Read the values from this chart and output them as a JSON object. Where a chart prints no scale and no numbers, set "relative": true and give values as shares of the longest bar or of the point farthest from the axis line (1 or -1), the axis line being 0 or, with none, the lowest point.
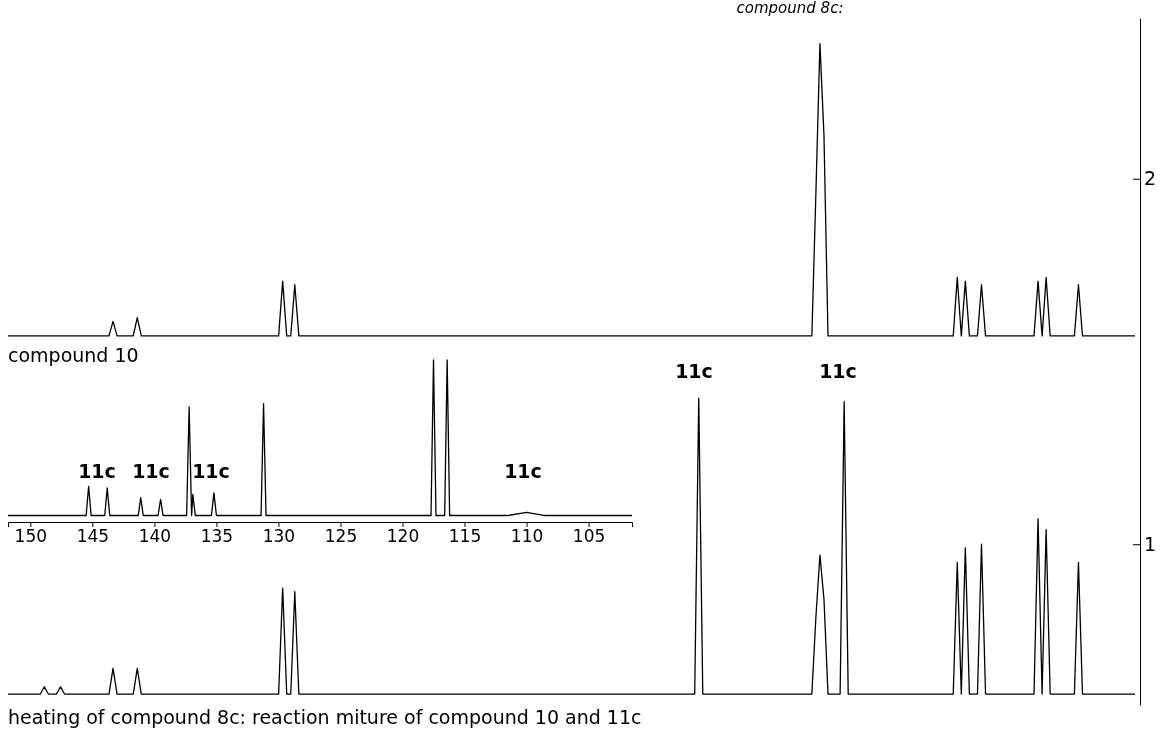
{
  "chart_data": [
    {
      "type": "line",
      "title": "compound 8c:",
      "relative": false,
      "tick_labels": "y",
      "grid": false,
      "marker": "none",
      "line_style": "solid",
      "categories": [
        null,
        null,
        null,
        null,
        null,
        null,
        null,
        null,
        null,
        null,
        null,
        null,
        null,
        null,
        null,
        null,
        null,
        null,
        null,
        null,
        null,
        null,
        null,
        null,
        null,
        null,
        null,
        null,
        null,
        null,
        null,
        null,
        null,
        null,
        null,
        null,
        null,
        null,
        null,
        null,
        null,
        null,
        null,
        null,
        null,
        null,
        null,
        null,
        null,
        null,
        null,
        null,
        null,
        null,
        null,
        null,
        null,
        null,
        null,
        null,
        null,
        null,
        null,
        null,
        null,
        null,
        null,
        null,
        null,
        null,
        null,
        null,
        null,
        null,
        null,
        null,
        null,
        null,
        null,
        null,
        null,
        null,
        null,
        null,
        null,
        null,
        null,
        null,
        null,
        null,
        null,
        null,
        null,
        null,
        null,
        null,
        null,
        null,
        null,
        null,
        null,
        null,
        null,
        null,
        null,
        null,
        null,
        null,
        null,
        null,
        null,
        null,
        null,
        null,
        null,
        null,
        null,
        null,
        null,
        null,
        null,
        null,
        null,
        null,
        null,
        null,
        null,
        null,
        null,
        null,
        null,
        null,
        null,
        null,
        null,
        null,
        null,
        null,
        null,
        null,
        null,
        null,
        null,
        null,
        null,
        null,
        null,
        null,
        null,
        null,
        null,
        null,
        null,
        null,
        null,
        null,
        null,
        null,
        null,
        null,
        null,
        null,
        null,
        null,
        null,
        null,
        null,
        null,
        null,
        null,
        null,
        null,
        null,
        null,
        null,
        null,
        null,
        null,
        null,
        null,
        null,
        null,
        null,
        null,
        null,
        null,
        null,
        null,
        null,
        null,
        null,
        null,
        null,
        null,
        null,
        null,
        null,
        null,
        null,
        null,
        null,
        null,
        null,
        null,
        null,
        null,
        null,
        null,
        null,
        null,
        null,
        null,
        null,
        null,
        null,
        null,
        null,
        null,
        null,
        null,
        null,
        null,
        null,
        null,
        null,
        null,
        null,
        null,
        null,
        null,
        null,
        null,
        null,
        null,
        null,
        null,
        null,
        null,
        null,
        null,
        null,
        null,
        null,
        null,
        null,
        null,
        null,
        null,
        null,
        null,
        null,
        null,
        null,
        null,
        null,
        null,
        null,
        null,
        null,
        null,
        null,
        null,
        null,
        null,
        null,
        null,
        null,
        null,
        null,
        null,
        null,
        null,
        null,
        null,
        null,
        null,
        null,
        null,
        null,
        null
      ],
      "ylim": [
        0.56,
        2.44
      ],
      "yticks": [
        1,
        2
      ],
      "series": [
        {
          "color": "#000000",
          "values": [
            1.57,
            1.57,
            1.57,
            1.57,
            1.57,
            1.57,
            1.57,
            1.57,
            1.57,
            1.57,
            1.57,
            1.57,
            1.57,
            1.57,
            1.57,
            1.57,
            1.57,
            1.57,
            1.57,
            1.57,
            1.57,
            1.57,
            1.57,
            1.57,
            1.57,
            1.57,
            1.61,
            1.57,
            1.57,
            1.57,
            1.57,
            1.57,
            1.62,
            1.57,
            1.57,
            1.57,
            1.57,
            1.57,
            1.57,
            1.57,
            1.57,
            1.57,
            1.57,
            1.57,
            1.57,
            1.57,
            1.57,
            1.57,
            1.57,
            1.57,
            1.57,
            1.57,
            1.57,
            1.57,
            1.57,
            1.57,
            1.57,
            1.57,
            1.57,
            1.57,
            1.57,
            1.57,
            1.57,
            1.57,
            1.57,
            1.57,
            1.57,
            1.57,
            1.72,
            1.57,
            1.57,
            1.71,
            1.57,
            1.57,
            1.57,
            1.57,
            1.57,
            1.57,
            1.57,
            1.57,
            1.57,
            1.57,
            1.57,
            1.57,
            1.57,
            1.57,
            1.57,
            1.57,
            1.57,
            1.57,
            1.57,
            1.57,
            1.57,
            1.57,
            1.57,
            1.57,
            1.57,
            1.57,
            1.57,
            1.57,
            1.57,
            1.57,
            1.57,
            1.57,
            1.57,
            1.57,
            1.57,
            1.57,
            1.57,
            1.57,
            1.57,
            1.57,
            1.57,
            1.57,
            1.57,
            1.57,
            1.57,
            1.57,
            1.57,
            1.57,
            1.57,
            1.57,
            1.57,
            1.57,
            1.57,
            1.57,
            1.57,
            1.57,
            1.57,
            1.57,
            1.57,
            1.57,
            1.57,
            1.57,
            1.57,
            1.57,
            1.57,
            1.57,
            1.57,
            1.57,
            1.57,
            1.57,
            1.57,
            1.57,
            1.57,
            1.57,
            1.57,
            1.57,
            1.57,
            1.57,
            1.57,
            1.57,
            1.57,
            1.57,
            1.57,
            1.57,
            1.57,
            1.57,
            1.57,
            1.57,
            1.57,
            1.57,
            1.57,
            1.57,
            1.57,
            1.57,
            1.57,
            1.57,
            1.57,
            1.57,
            1.57,
            1.57,
            1.57,
            1.57,
            1.57,
            1.57,
            1.57,
            1.57,
            1.57,
            1.57,
            1.57,
            1.57,
            1.57,
            1.57,
            1.57,
            1.57,
            1.57,
            1.57,
            1.57,
            1.57,
            1.57,
            1.57,
            1.57,
            1.57,
            1.57,
            1.57,
            1.57,
            1.57,
            1.57,
            1.57,
            1.96,
            2.37,
            2.12,
            1.57,
            1.57,
            1.57,
            1.57,
            1.57,
            1.57,
            1.57,
            1.57,
            1.57,
            1.57,
            1.57,
            1.57,
            1.57,
            1.57,
            1.57,
            1.57,
            1.57,
            1.57,
            1.57,
            1.57,
            1.57,
            1.57,
            1.57,
            1.57,
            1.57,
            1.57,
            1.57,
            1.57,
            1.57,
            1.57,
            1.57,
            1.57,
            1.73,
            1.57,
            1.72,
            1.57,
            1.57,
            1.57,
            1.71,
            1.57,
            1.57,
            1.57,
            1.57,
            1.57,
            1.57,
            1.57,
            1.57,
            1.57,
            1.57,
            1.57,
            1.57,
            1.57,
            1.72,
            1.57,
            1.73,
            1.57,
            1.57,
            1.57,
            1.57,
            1.57,
            1.57,
            1.57,
            1.71,
            1.57,
            1.57,
            1.57,
            1.57,
            1.57,
            1.57,
            1.57,
            1.57,
            1.57,
            1.57,
            1.57,
            1.57,
            1.57,
            1.57
          ]
        },
        {
          "color": "#000000",
          "values": [
            0.59,
            0.59,
            0.59,
            0.59,
            0.59,
            0.59,
            0.59,
            0.59,
            0.59,
            0.61,
            0.59,
            0.59,
            0.59,
            0.61,
            0.59,
            0.59,
            0.59,
            0.59,
            0.59,
            0.59,
            0.59,
            0.59,
            0.59,
            0.59,
            0.59,
            0.59,
            0.66,
            0.59,
            0.59,
            0.59,
            0.59,
            0.59,
            0.66,
            0.59,
            0.59,
            0.59,
            0.59,
            0.59,
            0.59,
            0.59,
            0.59,
            0.59,
            0.59,
            0.59,
            0.59,
            0.59,
            0.59,
            0.59,
            0.59,
            0.59,
            0.59,
            0.59,
            0.59,
            0.59,
            0.59,
            0.59,
            0.59,
            0.59,
            0.59,
            0.59,
            0.59,
            0.59,
            0.59,
            0.59,
            0.59,
            0.59,
            0.59,
            0.59,
            0.88,
            0.59,
            0.59,
            0.87,
            0.59,
            0.59,
            0.59,
            0.59,
            0.59,
            0.59,
            0.59,
            0.59,
            0.59,
            0.59,
            0.59,
            0.59,
            0.59,
            0.59,
            0.59,
            0.59,
            0.59,
            0.59,
            0.59,
            0.59,
            0.59,
            0.59,
            0.59,
            0.59,
            0.59,
            0.59,
            0.59,
            0.59,
            0.59,
            0.59,
            0.59,
            0.59,
            0.59,
            0.59,
            0.59,
            0.59,
            0.59,
            0.59,
            0.59,
            0.59,
            0.59,
            0.59,
            0.59,
            0.59,
            0.59,
            0.59,
            0.59,
            0.59,
            0.59,
            0.59,
            0.59,
            0.59,
            0.59,
            0.59,
            0.59,
            0.59,
            0.59,
            0.59,
            0.59,
            0.59,
            0.59,
            0.59,
            0.59,
            0.59,
            0.59,
            0.59,
            0.59,
            0.59,
            0.59,
            0.59,
            0.59,
            0.59,
            0.59,
            0.59,
            0.59,
            0.59,
            0.59,
            0.59,
            0.59,
            0.59,
            0.59,
            0.59,
            0.59,
            0.59,
            0.59,
            0.59,
            0.59,
            0.59,
            0.59,
            0.59,
            0.59,
            0.59,
            0.59,
            0.59,
            0.59,
            0.59,
            0.59,
            0.59,
            0.59,
            1.4,
            0.59,
            0.59,
            0.59,
            0.59,
            0.59,
            0.59,
            0.59,
            0.59,
            0.59,
            0.59,
            0.59,
            0.59,
            0.59,
            0.59,
            0.59,
            0.59,
            0.59,
            0.59,
            0.59,
            0.59,
            0.59,
            0.59,
            0.59,
            0.59,
            0.59,
            0.59,
            0.59,
            0.59,
            0.8,
            0.97,
            0.85,
            0.59,
            0.59,
            0.59,
            0.59,
            1.39,
            0.59,
            0.59,
            0.59,
            0.59,
            0.59,
            0.59,
            0.59,
            0.59,
            0.59,
            0.59,
            0.59,
            0.59,
            0.59,
            0.59,
            0.59,
            0.59,
            0.59,
            0.59,
            0.59,
            0.59,
            0.59,
            0.59,
            0.59,
            0.59,
            0.59,
            0.59,
            0.59,
            0.95,
            0.59,
            0.99,
            0.59,
            0.59,
            0.59,
            1.0,
            0.59,
            0.59,
            0.59,
            0.59,
            0.59,
            0.59,
            0.59,
            0.59,
            0.59,
            0.59,
            0.59,
            0.59,
            0.59,
            1.07,
            0.59,
            1.04,
            0.59,
            0.59,
            0.59,
            0.59,
            0.59,
            0.59,
            0.59,
            0.95,
            0.59,
            0.59,
            0.59,
            0.59,
            0.59,
            0.59,
            0.59,
            0.59,
            0.59,
            0.59,
            0.59,
            0.59,
            0.59,
            0.59
          ]
        }
      ],
      "annotations": [
        "compound 10",
        "heating of compound 8c:  reaction miture of compound 10 and 11c",
        "11c",
        "11c"
      ]
    },
    {
      "type": "line",
      "relative": true,
      "tick_labels": "x",
      "grid": false,
      "marker": "none",
      "line_style": "solid",
      "xlim": [
        151.8,
        101.5
      ],
      "xticks": [
        150,
        145,
        140,
        135,
        130,
        125,
        120,
        115,
        110,
        105
      ],
      "series": [
        {
          "color": "#000000",
          "x": [
            151.8,
            145.5,
            145.3,
            145.1,
            144.0,
            143.8,
            143.6,
            141.3,
            141.1,
            140.9,
            139.7,
            139.5,
            139.3,
            137.4,
            137.2,
            137.0,
            136.9,
            136.7,
            135.4,
            135.2,
            135.0,
            131.4,
            131.2,
            131.0,
            117.7,
            117.5,
            117.3,
            116.6,
            116.4,
            116.2,
            111.5,
            110.0,
            108.5,
            101.5
          ],
          "values": [
            0.04,
            0.04,
            0.22,
            0.04,
            0.04,
            0.21,
            0.04,
            0.04,
            0.15,
            0.04,
            0.04,
            0.14,
            0.04,
            0.04,
            0.71,
            0.04,
            0.17,
            0.04,
            0.04,
            0.18,
            0.04,
            0.04,
            0.73,
            0.04,
            0.04,
            1,
            0.04,
            0.04,
            1,
            0.04,
            0.04,
            0.06,
            0.04,
            0.04
          ]
        }
      ],
      "annotations": [
        "11c",
        "11c",
        "11c",
        "11c"
      ]
    }
  ]
}
